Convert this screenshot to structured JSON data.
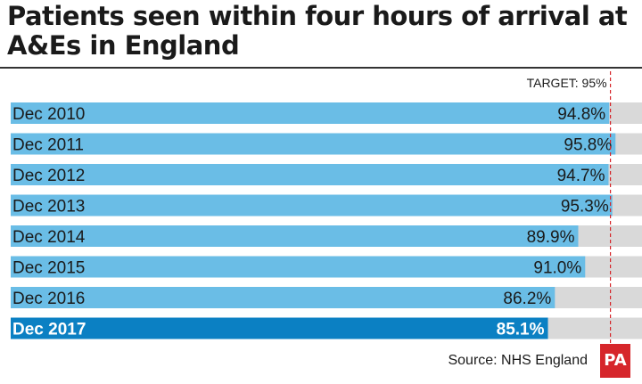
{
  "chart_data": {
    "type": "bar",
    "orientation": "horizontal",
    "title": "Patients seen within four hours of arrival at A&Es in England",
    "categories": [
      "Dec 2010",
      "Dec 2011",
      "Dec 2012",
      "Dec 2013",
      "Dec 2014",
      "Dec 2015",
      "Dec 2016",
      "Dec 2017"
    ],
    "values": [
      94.8,
      95.8,
      94.7,
      95.3,
      89.9,
      91.0,
      86.2,
      85.1
    ],
    "value_labels": [
      "94.8%",
      "95.8%",
      "94.7%",
      "95.3%",
      "89.9%",
      "91.0%",
      "86.2%",
      "85.1%"
    ],
    "highlight_category": "Dec 2017",
    "target": {
      "value": 95,
      "label": "TARGET: 95%"
    },
    "xlim": [
      0,
      100
    ],
    "grid": false,
    "legend": "none",
    "colors": {
      "bar": "#6abde6",
      "highlight_bar": "#0b80c3",
      "track": "#d9d9d9",
      "target_line": "#d6262b"
    }
  },
  "source": "Source: NHS England",
  "logo_text": "PA"
}
